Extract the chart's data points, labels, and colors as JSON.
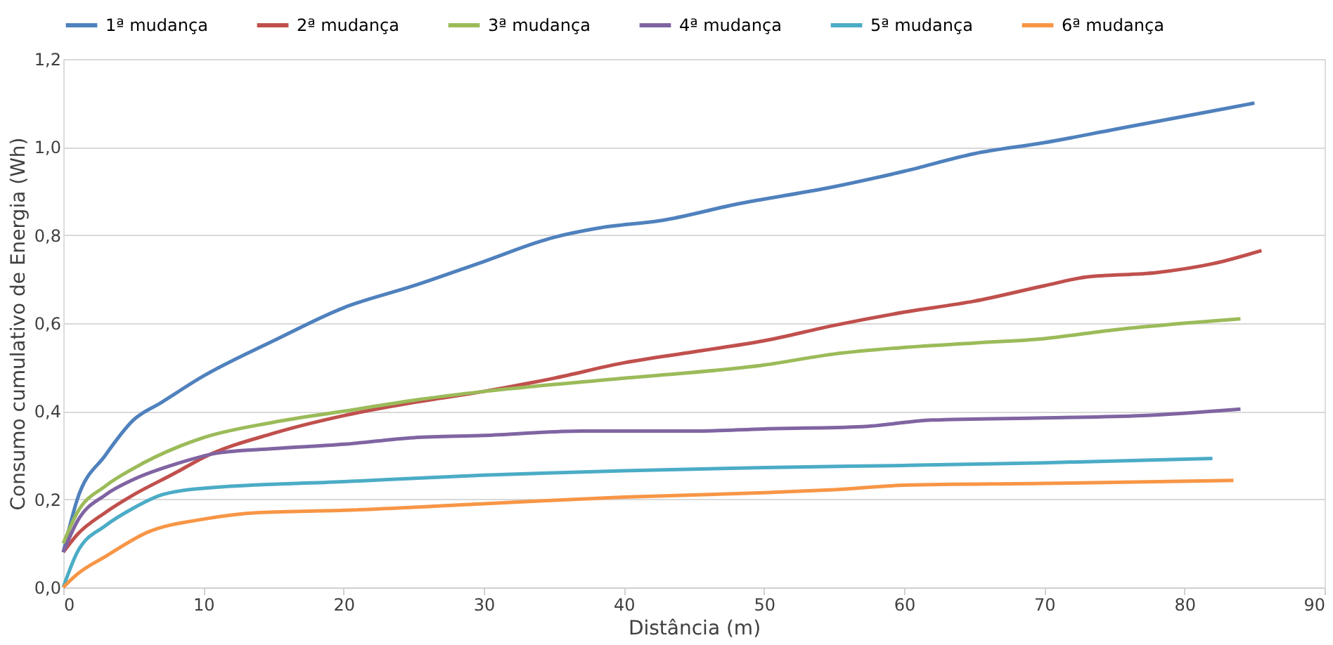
{
  "chart_data": {
    "type": "line",
    "xlabel": "Distância (m)",
    "ylabel": "Consumo cumulativo de Energia (Wh)",
    "xlim": [
      0,
      90
    ],
    "xticks": [
      0,
      10,
      20,
      30,
      40,
      50,
      60,
      70,
      80,
      90
    ],
    "ylim": [
      0,
      1.2
    ],
    "yticks": [
      {
        "value": 0,
        "label": "0,0"
      },
      {
        "value": 0.2,
        "label": "0,2"
      },
      {
        "value": 0.4,
        "label": "0,4"
      },
      {
        "value": 0.6,
        "label": "0,6"
      },
      {
        "value": 0.8,
        "label": "0,8"
      },
      {
        "value": 1.0,
        "label": "1,0"
      },
      {
        "value": 1.2,
        "label": "1,2"
      }
    ],
    "grid": "y",
    "legend": "top",
    "marker": "none",
    "line_style": "solid",
    "series": [
      {
        "name": "1ª mudança",
        "color": "#4f81bd",
        "x": [
          0,
          1,
          3,
          5,
          7,
          10,
          15,
          20,
          25,
          30,
          35,
          38,
          43,
          48,
          55,
          60,
          65,
          70,
          75,
          80,
          85
        ],
        "values": [
          0.08,
          0.2,
          0.3,
          0.38,
          0.42,
          0.48,
          0.56,
          0.635,
          0.685,
          0.74,
          0.795,
          0.815,
          0.835,
          0.87,
          0.91,
          0.945,
          0.985,
          1.01,
          1.04,
          1.07,
          1.1
        ]
      },
      {
        "name": "2ª mudança",
        "color": "#c0504d",
        "x": [
          0,
          1,
          3,
          5,
          8,
          10,
          15,
          20,
          25,
          30,
          35,
          40,
          45,
          50,
          55,
          60,
          65,
          70,
          73,
          78,
          82,
          85.5
        ],
        "values": [
          0.08,
          0.12,
          0.17,
          0.21,
          0.26,
          0.295,
          0.35,
          0.39,
          0.42,
          0.445,
          0.475,
          0.51,
          0.535,
          0.56,
          0.595,
          0.625,
          0.65,
          0.685,
          0.705,
          0.715,
          0.735,
          0.765
        ]
      },
      {
        "name": "3ª mudança",
        "color": "#9bbb59",
        "x": [
          0,
          1,
          3,
          5,
          10,
          15,
          20,
          25,
          30,
          40,
          50,
          55,
          60,
          65,
          70,
          75,
          80,
          84
        ],
        "values": [
          0.1,
          0.17,
          0.23,
          0.27,
          0.34,
          0.375,
          0.4,
          0.425,
          0.445,
          0.475,
          0.505,
          0.53,
          0.545,
          0.555,
          0.565,
          0.585,
          0.6,
          0.61
        ]
      },
      {
        "name": "4ª mudança",
        "color": "#8064a2",
        "x": [
          0,
          1,
          3,
          5,
          8,
          11,
          15,
          20,
          25,
          30,
          37,
          45,
          50,
          57,
          62,
          70,
          77,
          84
        ],
        "values": [
          0.08,
          0.15,
          0.21,
          0.245,
          0.28,
          0.305,
          0.315,
          0.325,
          0.34,
          0.345,
          0.355,
          0.355,
          0.36,
          0.365,
          0.38,
          0.385,
          0.39,
          0.405
        ]
      },
      {
        "name": "5ª mudança",
        "color": "#4bacc6",
        "x": [
          0,
          1,
          3,
          5,
          7,
          10,
          20,
          30,
          40,
          50,
          60,
          70,
          82
        ],
        "values": [
          0.0,
          0.08,
          0.14,
          0.18,
          0.21,
          0.225,
          0.24,
          0.255,
          0.265,
          0.272,
          0.277,
          0.283,
          0.293
        ]
      },
      {
        "name": "6ª mudança",
        "color": "#f79646",
        "x": [
          0,
          1,
          3,
          6,
          10,
          14,
          20,
          30,
          40,
          50,
          55,
          60,
          70,
          83.5
        ],
        "values": [
          0.0,
          0.03,
          0.07,
          0.125,
          0.155,
          0.17,
          0.175,
          0.19,
          0.205,
          0.215,
          0.222,
          0.232,
          0.236,
          0.243
        ]
      }
    ]
  }
}
